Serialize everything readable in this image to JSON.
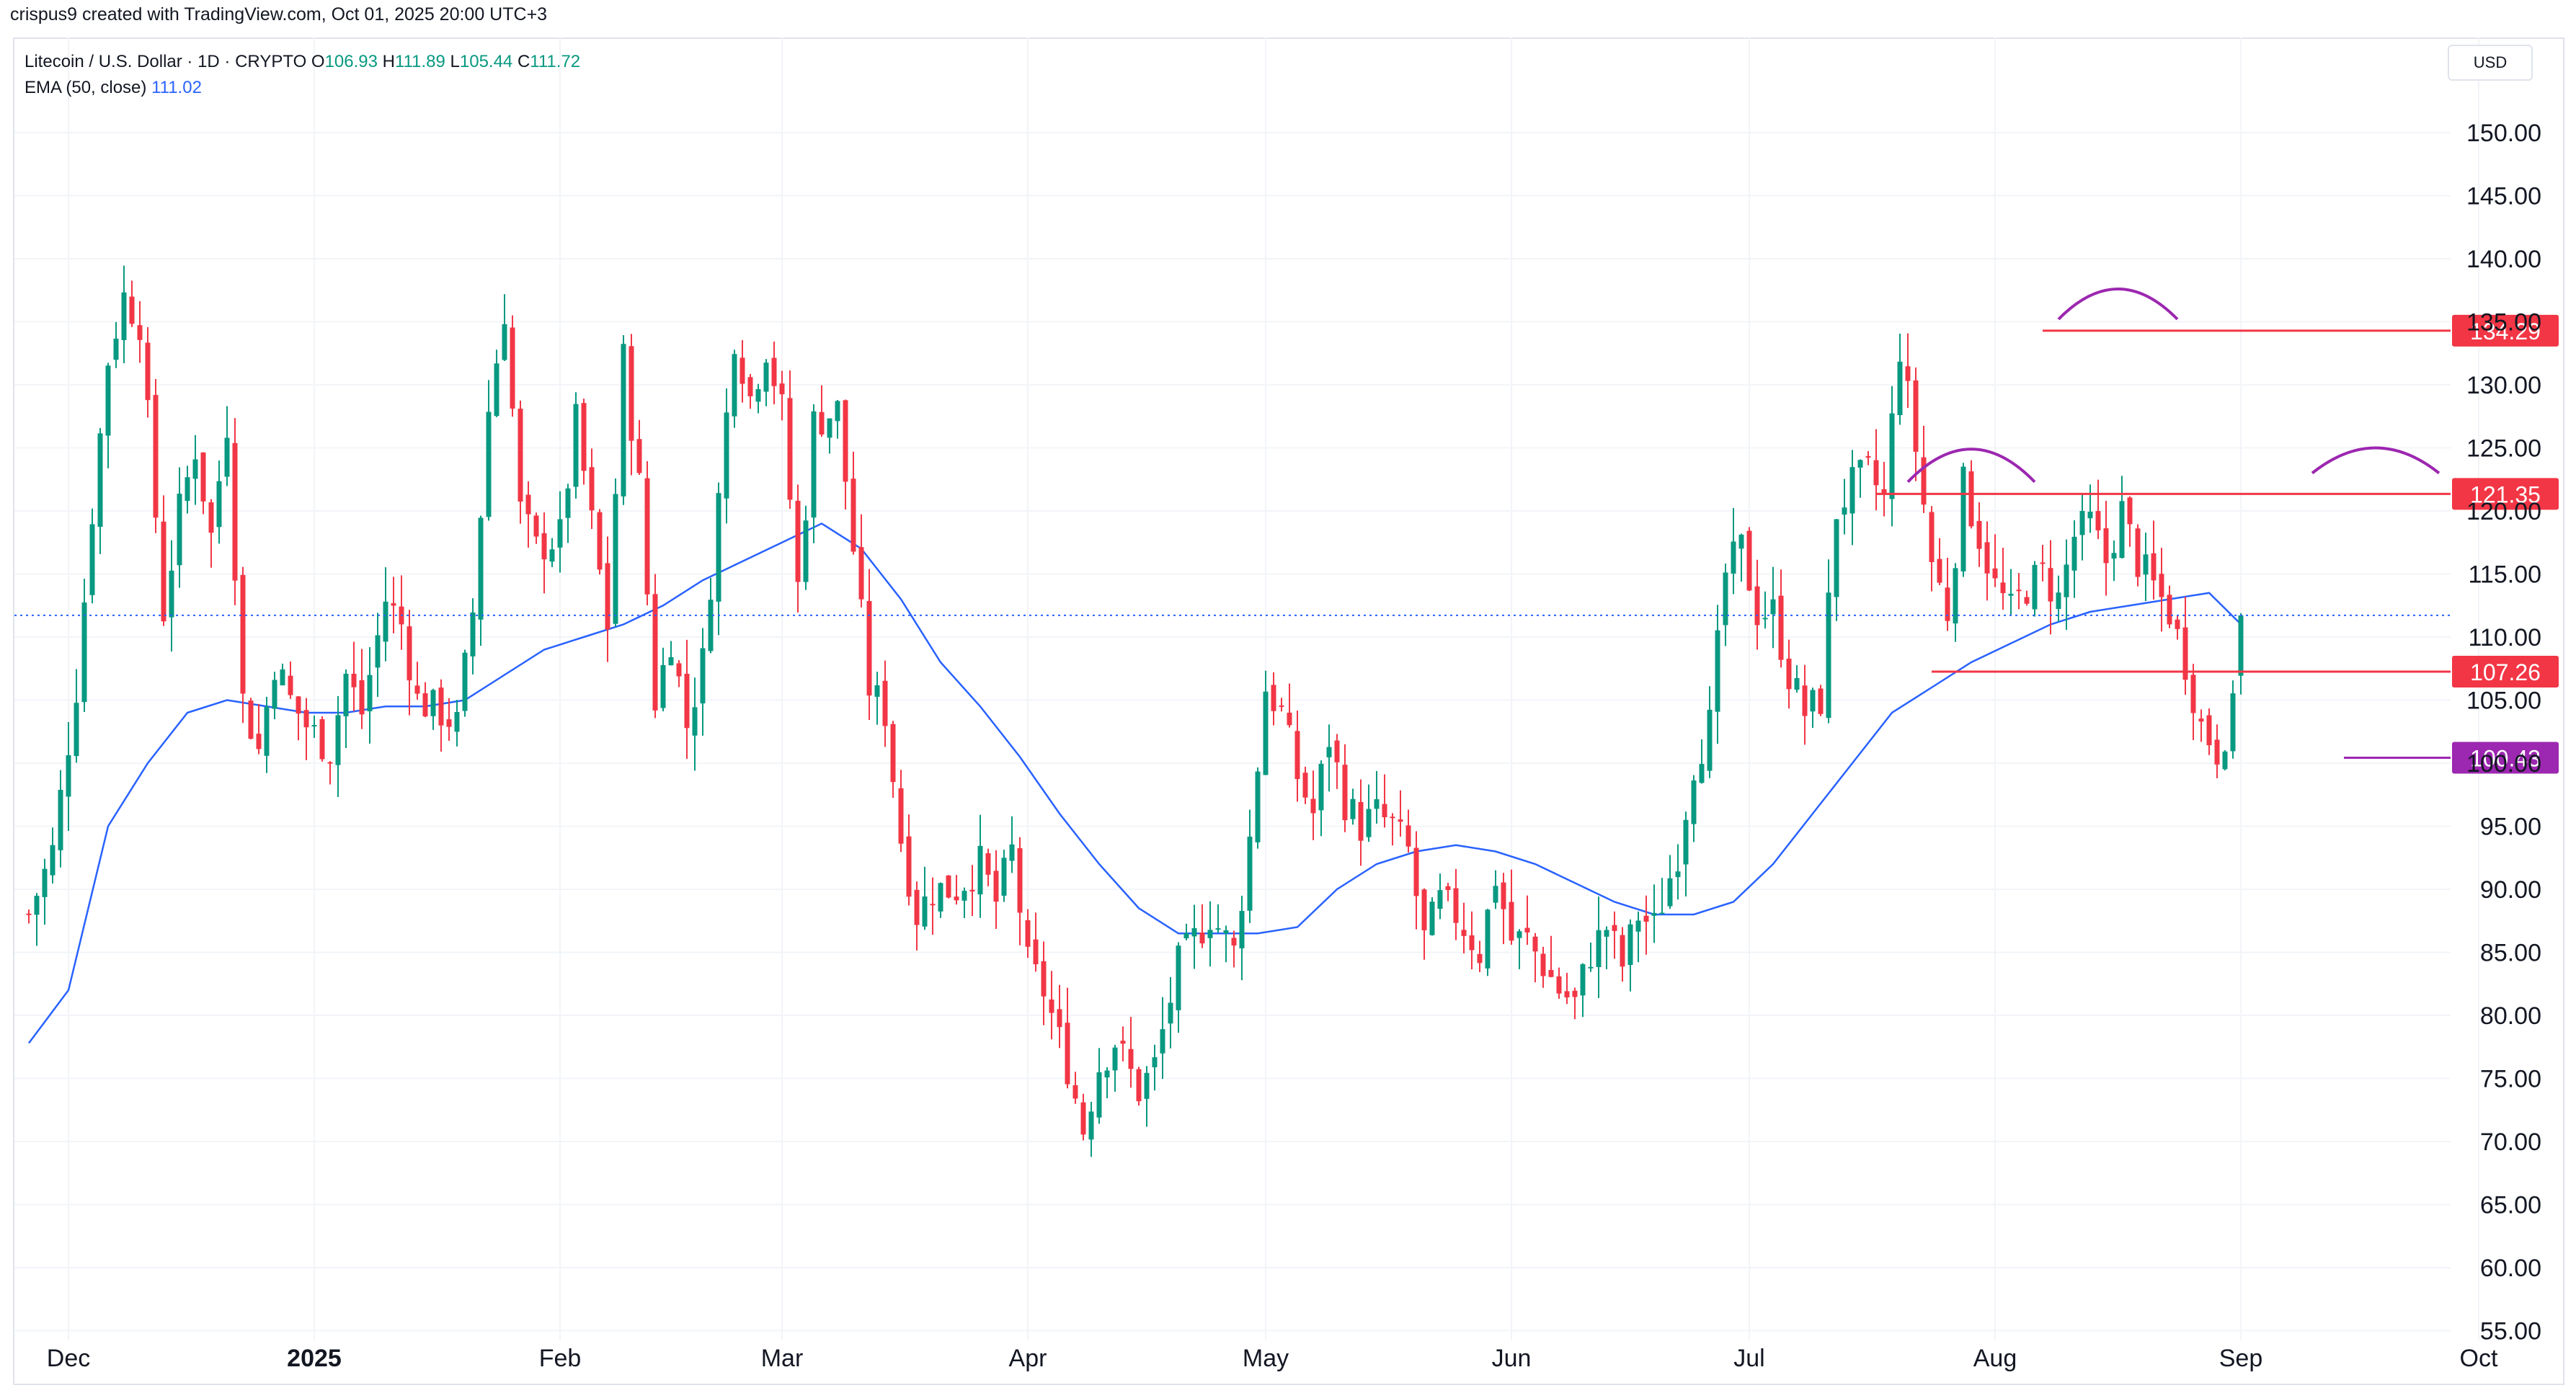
{
  "header": {
    "credit": "crispus9 created with TradingView.com, Oct 01, 2025 20:00 UTC+3"
  },
  "legend": {
    "symbol": "Litecoin / U.S. Dollar · 1D · CRYPTO",
    "o_label": "O",
    "o_value": "106.93",
    "h_label": "H",
    "h_value": "111.89",
    "l_label": "L",
    "l_value": "105.44",
    "c_label": "C",
    "c_value": "111.72",
    "ema_label": "EMA (50, close)",
    "ema_value": "111.02"
  },
  "currency": "USD",
  "colors": {
    "up": "#089981",
    "down": "#f23645",
    "ema": "#2962ff",
    "resistance": "#f23645",
    "support": "#9c27b0",
    "grid": "#f0f3fa"
  },
  "chart_data": {
    "type": "candlestick",
    "title": "",
    "ylim": [
      55,
      155
    ],
    "y_ticks": [
      "150.00",
      "145.00",
      "140.00",
      "135.00",
      "130.00",
      "125.00",
      "120.00",
      "115.00",
      "110.00",
      "105.00",
      "100.00",
      "95.00",
      "90.00",
      "85.00",
      "80.00",
      "75.00",
      "70.00",
      "65.00",
      "60.00",
      "55.00"
    ],
    "x_ticks": [
      {
        "label": "Dec",
        "day": 0,
        "bold": false
      },
      {
        "label": "2025",
        "day": 31,
        "bold": true
      },
      {
        "label": "Feb",
        "day": 62,
        "bold": false
      },
      {
        "label": "Mar",
        "day": 90,
        "bold": false
      },
      {
        "label": "Apr",
        "day": 121,
        "bold": false
      },
      {
        "label": "May",
        "day": 151,
        "bold": false
      },
      {
        "label": "Jun",
        "day": 182,
        "bold": false
      },
      {
        "label": "Jul",
        "day": 212,
        "bold": false
      },
      {
        "label": "Aug",
        "day": 243,
        "bold": false
      },
      {
        "label": "Sep",
        "day": 274,
        "bold": false
      },
      {
        "label": "Oct",
        "day": 304,
        "bold": false
      }
    ],
    "current_price": 111.72,
    "levels": [
      {
        "label": "134.29",
        "value": 134.29,
        "type": "resistance",
        "from_day": 249
      },
      {
        "label": "121.35",
        "value": 121.35,
        "type": "resistance",
        "from_day": 228
      },
      {
        "label": "107.26",
        "value": 107.26,
        "type": "neckline",
        "from_day": 235
      },
      {
        "label": "100.43",
        "value": 100.43,
        "type": "support",
        "from_day": 287
      }
    ],
    "arcs": [
      {
        "name": "left-shoulder",
        "from_day": 232,
        "to_day": 248,
        "base": 122.3,
        "peak": 124.9
      },
      {
        "name": "head",
        "from_day": 251,
        "to_day": 266,
        "base": 135.2,
        "peak": 137.6
      },
      {
        "name": "right-shoulder",
        "from_day": 283,
        "to_day": 299,
        "base": 123.0,
        "peak": 125.0
      }
    ],
    "keypoints": [
      [
        -5,
        88
      ],
      [
        -2,
        93
      ],
      [
        1,
        106
      ],
      [
        3,
        120
      ],
      [
        5,
        132
      ],
      [
        7,
        137
      ],
      [
        9,
        135
      ],
      [
        12,
        112
      ],
      [
        14,
        120
      ],
      [
        16,
        125
      ],
      [
        18,
        118
      ],
      [
        20,
        127
      ],
      [
        22,
        105
      ],
      [
        24,
        101
      ],
      [
        26,
        108
      ],
      [
        28,
        105
      ],
      [
        30,
        103
      ],
      [
        33,
        101
      ],
      [
        35,
        107
      ],
      [
        37,
        104
      ],
      [
        40,
        113
      ],
      [
        42,
        111
      ],
      [
        44,
        105
      ],
      [
        47,
        104
      ],
      [
        49,
        103
      ],
      [
        51,
        112
      ],
      [
        53,
        128
      ],
      [
        55,
        136
      ],
      [
        57,
        120
      ],
      [
        59,
        117
      ],
      [
        62,
        118
      ],
      [
        64,
        127
      ],
      [
        66,
        119
      ],
      [
        68,
        111
      ],
      [
        70,
        132
      ],
      [
        72,
        122
      ],
      [
        74,
        105
      ],
      [
        76,
        110
      ],
      [
        78,
        103
      ],
      [
        80,
        108
      ],
      [
        82,
        121
      ],
      [
        84,
        134
      ],
      [
        86,
        129
      ],
      [
        88,
        133
      ],
      [
        90,
        128
      ],
      [
        92,
        114
      ],
      [
        94,
        127
      ],
      [
        97,
        128
      ],
      [
        99,
        117
      ],
      [
        101,
        106
      ],
      [
        103,
        104
      ],
      [
        105,
        94
      ],
      [
        107,
        88
      ],
      [
        109,
        90
      ],
      [
        112,
        90
      ],
      [
        115,
        92
      ],
      [
        117,
        89
      ],
      [
        119,
        93
      ],
      [
        121,
        84
      ],
      [
        123,
        82
      ],
      [
        126,
        76
      ],
      [
        128,
        71
      ],
      [
        130,
        76
      ],
      [
        132,
        78
      ],
      [
        135,
        74
      ],
      [
        137,
        76
      ],
      [
        140,
        84
      ],
      [
        142,
        86
      ],
      [
        144,
        88
      ],
      [
        147,
        85
      ],
      [
        149,
        94
      ],
      [
        151,
        106
      ],
      [
        153,
        104
      ],
      [
        155,
        99
      ],
      [
        157,
        96
      ],
      [
        159,
        102
      ],
      [
        161,
        97
      ],
      [
        163,
        95
      ],
      [
        165,
        96
      ],
      [
        167,
        95
      ],
      [
        169,
        93
      ],
      [
        171,
        86
      ],
      [
        173,
        89
      ],
      [
        175,
        88
      ],
      [
        178,
        85
      ],
      [
        180,
        91
      ],
      [
        182,
        86
      ],
      [
        184,
        86
      ],
      [
        186,
        84
      ],
      [
        188,
        82
      ],
      [
        190,
        81
      ],
      [
        192,
        85
      ],
      [
        194,
        87
      ],
      [
        196,
        84
      ],
      [
        198,
        88
      ],
      [
        200,
        87
      ],
      [
        203,
        93
      ],
      [
        205,
        100
      ],
      [
        207,
        103
      ],
      [
        209,
        115
      ],
      [
        211,
        117
      ],
      [
        213,
        112
      ],
      [
        215,
        112
      ],
      [
        217,
        107
      ],
      [
        219,
        104
      ],
      [
        221,
        105
      ],
      [
        223,
        120
      ],
      [
        225,
        122
      ],
      [
        227,
        123
      ],
      [
        229,
        121
      ],
      [
        231,
        133
      ],
      [
        233,
        125
      ],
      [
        235,
        116
      ],
      [
        237,
        112
      ],
      [
        239,
        122
      ],
      [
        241,
        118
      ],
      [
        243,
        114
      ],
      [
        245,
        112
      ],
      [
        247,
        114
      ],
      [
        249,
        115
      ],
      [
        251,
        113
      ],
      [
        253,
        118
      ],
      [
        255,
        119
      ],
      [
        257,
        116
      ],
      [
        259,
        120
      ],
      [
        261,
        116
      ],
      [
        263,
        114
      ],
      [
        265,
        112
      ],
      [
        267,
        108
      ],
      [
        269,
        103
      ],
      [
        271,
        101
      ],
      [
        273,
        104
      ],
      [
        274,
        111.72
      ]
    ],
    "ema": [
      [
        -5,
        77.8
      ],
      [
        0,
        82
      ],
      [
        5,
        95
      ],
      [
        10,
        100
      ],
      [
        15,
        104
      ],
      [
        20,
        105
      ],
      [
        25,
        104.5
      ],
      [
        30,
        104
      ],
      [
        35,
        104
      ],
      [
        40,
        104.5
      ],
      [
        45,
        104.5
      ],
      [
        50,
        105
      ],
      [
        55,
        107
      ],
      [
        60,
        109
      ],
      [
        65,
        110
      ],
      [
        70,
        111
      ],
      [
        75,
        112.5
      ],
      [
        80,
        114.5
      ],
      [
        85,
        116
      ],
      [
        90,
        117.5
      ],
      [
        95,
        119
      ],
      [
        100,
        117
      ],
      [
        105,
        113
      ],
      [
        110,
        108
      ],
      [
        115,
        104.5
      ],
      [
        120,
        100.5
      ],
      [
        125,
        96
      ],
      [
        130,
        92
      ],
      [
        135,
        88.5
      ],
      [
        140,
        86.5
      ],
      [
        145,
        86.5
      ],
      [
        150,
        86.5
      ],
      [
        155,
        87
      ],
      [
        160,
        90
      ],
      [
        165,
        92
      ],
      [
        170,
        93
      ],
      [
        175,
        93.5
      ],
      [
        180,
        93
      ],
      [
        185,
        92
      ],
      [
        190,
        90.5
      ],
      [
        195,
        89
      ],
      [
        200,
        88
      ],
      [
        205,
        88
      ],
      [
        210,
        89
      ],
      [
        215,
        92
      ],
      [
        220,
        96
      ],
      [
        225,
        100
      ],
      [
        230,
        104
      ],
      [
        235,
        106
      ],
      [
        240,
        108
      ],
      [
        245,
        109.5
      ],
      [
        250,
        111
      ],
      [
        255,
        112
      ],
      [
        260,
        112.5
      ],
      [
        265,
        113
      ],
      [
        270,
        113.5
      ],
      [
        274,
        111.02
      ]
    ]
  }
}
